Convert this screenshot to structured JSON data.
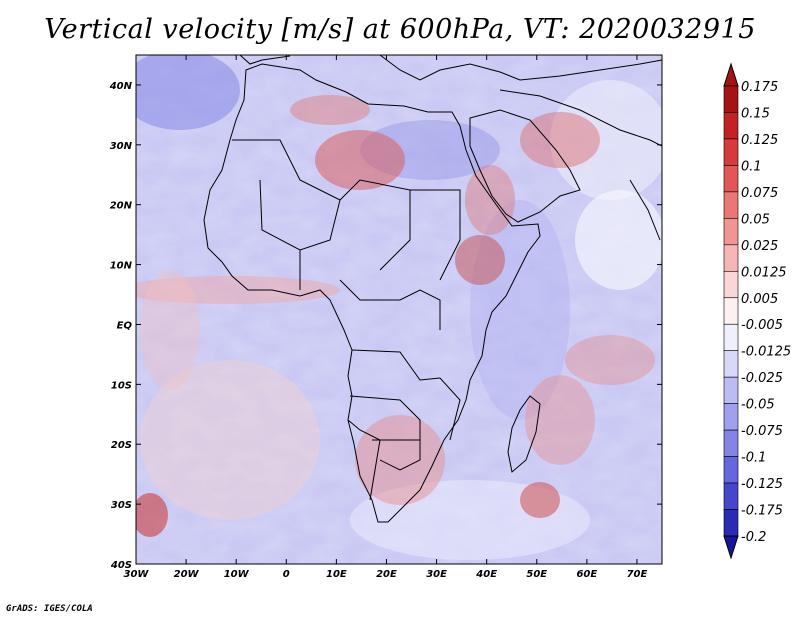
{
  "title": "Vertical velocity [m/s] at 600hPa, VT: 2020032915",
  "credit": "GrADS: IGES/COLA",
  "map": {
    "lat_labels": [
      "40N",
      "30N",
      "20N",
      "10N",
      "EQ",
      "10S",
      "20S",
      "30S",
      "40S"
    ],
    "lon_labels": [
      "30W",
      "20W",
      "10W",
      "0",
      "10E",
      "20E",
      "30E",
      "40E",
      "50E",
      "60E",
      "70E"
    ],
    "lon_range": [
      -30,
      75
    ],
    "lat_range": [
      -40,
      45
    ]
  },
  "colorbar": {
    "labels": [
      "0.175",
      "0.15",
      "0.125",
      "0.1",
      "0.075",
      "0.05",
      "0.025",
      "0.0125",
      "0.005",
      "-0.005",
      "-0.0125",
      "-0.025",
      "-0.05",
      "-0.075",
      "-0.1",
      "-0.125",
      "-0.175",
      "-0.2"
    ],
    "colors": [
      "#a51414",
      "#c42222",
      "#d63a3a",
      "#e25656",
      "#eb7676",
      "#f19494",
      "#f6b6b6",
      "#fad6d6",
      "#fdf0f0",
      "#f0f0fd",
      "#d8d8fa",
      "#bcbcf4",
      "#a0a0ee",
      "#8484e6",
      "#6666de",
      "#4646cc",
      "#2a2ab4",
      "#16169a"
    ]
  },
  "palette": {
    "frame": "#000000",
    "coast": "#000000"
  }
}
